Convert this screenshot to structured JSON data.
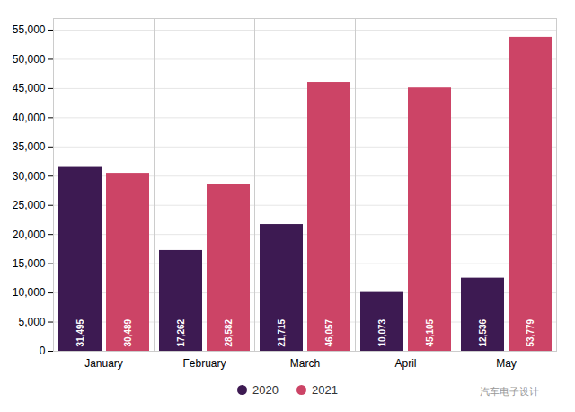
{
  "chart_data": {
    "type": "bar",
    "categories": [
      "January",
      "February",
      "March",
      "April",
      "May"
    ],
    "series": [
      {
        "name": "2020",
        "color": "#3d1a52",
        "values": [
          31495,
          17262,
          21715,
          10073,
          12536
        ],
        "value_labels": [
          "31,495",
          "17,262",
          "21,715",
          "10,073",
          "12,536"
        ]
      },
      {
        "name": "2021",
        "color": "#cc4466",
        "values": [
          30489,
          28582,
          46057,
          45105,
          53779
        ],
        "value_labels": [
          "30,489",
          "28,582",
          "46,057",
          "45,105",
          "53,779"
        ]
      }
    ],
    "ylim": [
      0,
      57000
    ],
    "yticks": [
      0,
      {
        "value": 5000,
        "label": "5,000"
      },
      {
        "value": 10000,
        "label": "10,000"
      },
      {
        "value": 15000,
        "label": "15,000"
      },
      {
        "value": 20000,
        "label": "20,000"
      },
      {
        "value": 25000,
        "label": "25,000"
      },
      {
        "value": 30000,
        "label": "30,000"
      },
      {
        "value": 35000,
        "label": "35,000"
      },
      {
        "value": 40000,
        "label": "40,000"
      },
      {
        "value": 45000,
        "label": "45,000"
      },
      {
        "value": 50000,
        "label": "50,000"
      },
      {
        "value": 55000,
        "label": "55,000"
      }
    ],
    "grid": true,
    "data_labels": true,
    "legend": "bottom",
    "annotations": [
      "汽车电子设计"
    ]
  }
}
